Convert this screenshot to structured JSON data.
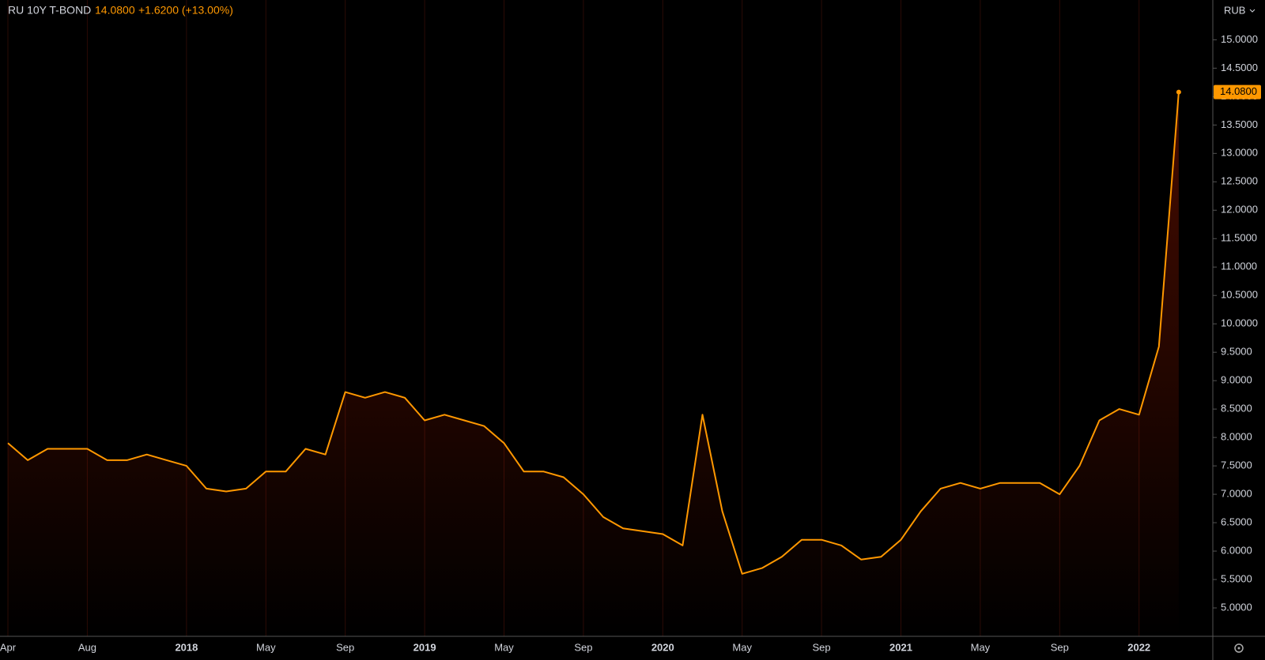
{
  "header": {
    "symbol": "RU 10Y T-BOND",
    "last_price": "14.0800",
    "change": "+1.6200 (+13.00%)",
    "currency": "RUB"
  },
  "chart_data": {
    "type": "area",
    "x": [
      "2017-04",
      "2017-05",
      "2017-06",
      "2017-07",
      "2017-08",
      "2017-09",
      "2017-10",
      "2017-11",
      "2017-12",
      "2018-01",
      "2018-02",
      "2018-03",
      "2018-04",
      "2018-05",
      "2018-06",
      "2018-07",
      "2018-08",
      "2018-09",
      "2018-10",
      "2018-11",
      "2018-12",
      "2019-01",
      "2019-02",
      "2019-03",
      "2019-04",
      "2019-05",
      "2019-06",
      "2019-07",
      "2019-08",
      "2019-09",
      "2019-10",
      "2019-11",
      "2019-12",
      "2020-01",
      "2020-02",
      "2020-03",
      "2020-04",
      "2020-05",
      "2020-06",
      "2020-07",
      "2020-08",
      "2020-09",
      "2020-10",
      "2020-11",
      "2020-12",
      "2021-01",
      "2021-02",
      "2021-03",
      "2021-04",
      "2021-05",
      "2021-06",
      "2021-07",
      "2021-08",
      "2021-09",
      "2021-10",
      "2021-11",
      "2021-12",
      "2022-01",
      "2022-02",
      "2022-03"
    ],
    "series": [
      {
        "name": "RU 10Y T-BOND",
        "color": "#ff9800",
        "values": [
          7.9,
          7.6,
          7.8,
          7.8,
          7.8,
          7.6,
          7.6,
          7.7,
          7.6,
          7.5,
          7.1,
          7.05,
          7.1,
          7.4,
          7.4,
          7.8,
          7.7,
          8.8,
          8.7,
          8.8,
          8.7,
          8.3,
          8.4,
          8.3,
          8.2,
          7.9,
          7.4,
          7.4,
          7.3,
          7.0,
          6.6,
          6.4,
          6.35,
          6.3,
          6.1,
          8.4,
          6.7,
          5.6,
          5.7,
          5.9,
          6.2,
          6.2,
          6.1,
          5.85,
          5.9,
          6.2,
          6.7,
          7.1,
          7.2,
          7.1,
          7.2,
          7.2,
          7.2,
          7.0,
          7.5,
          8.3,
          8.5,
          8.4,
          9.6,
          14.08
        ]
      }
    ],
    "xticks": [
      {
        "value": "2017-04",
        "label": "Apr"
      },
      {
        "value": "2017-08",
        "label": "Aug"
      },
      {
        "value": "2018-01",
        "label": "2018"
      },
      {
        "value": "2018-05",
        "label": "May"
      },
      {
        "value": "2018-09",
        "label": "Sep"
      },
      {
        "value": "2019-01",
        "label": "2019"
      },
      {
        "value": "2019-05",
        "label": "May"
      },
      {
        "value": "2019-09",
        "label": "Sep"
      },
      {
        "value": "2020-01",
        "label": "2020"
      },
      {
        "value": "2020-05",
        "label": "May"
      },
      {
        "value": "2020-09",
        "label": "Sep"
      },
      {
        "value": "2021-01",
        "label": "2021"
      },
      {
        "value": "2021-05",
        "label": "May"
      },
      {
        "value": "2021-09",
        "label": "Sep"
      },
      {
        "value": "2022-01",
        "label": "2022"
      }
    ],
    "ylim": [
      4.5,
      15.7
    ],
    "yticks": [
      {
        "value": 5,
        "label": "5.0000"
      },
      {
        "value": 5.5,
        "label": "5.5000"
      },
      {
        "value": 6,
        "label": "6.0000"
      },
      {
        "value": 6.5,
        "label": "6.5000"
      },
      {
        "value": 7,
        "label": "7.0000"
      },
      {
        "value": 7.5,
        "label": "7.5000"
      },
      {
        "value": 8,
        "label": "8.0000"
      },
      {
        "value": 8.5,
        "label": "8.5000"
      },
      {
        "value": 9,
        "label": "9.0000"
      },
      {
        "value": 9.5,
        "label": "9.5000"
      },
      {
        "value": 10,
        "label": "10.0000"
      },
      {
        "value": 10.5,
        "label": "10.5000"
      },
      {
        "value": 11,
        "label": "11.0000"
      },
      {
        "value": 11.5,
        "label": "11.5000"
      },
      {
        "value": 12,
        "label": "12.0000"
      },
      {
        "value": 12.5,
        "label": "12.5000"
      },
      {
        "value": 13,
        "label": "13.0000"
      },
      {
        "value": 13.5,
        "label": "13.5000"
      },
      {
        "value": 14,
        "label": "14.0000"
      },
      {
        "value": 14.5,
        "label": "14.5000"
      },
      {
        "value": 15,
        "label": "15.0000"
      }
    ]
  }
}
